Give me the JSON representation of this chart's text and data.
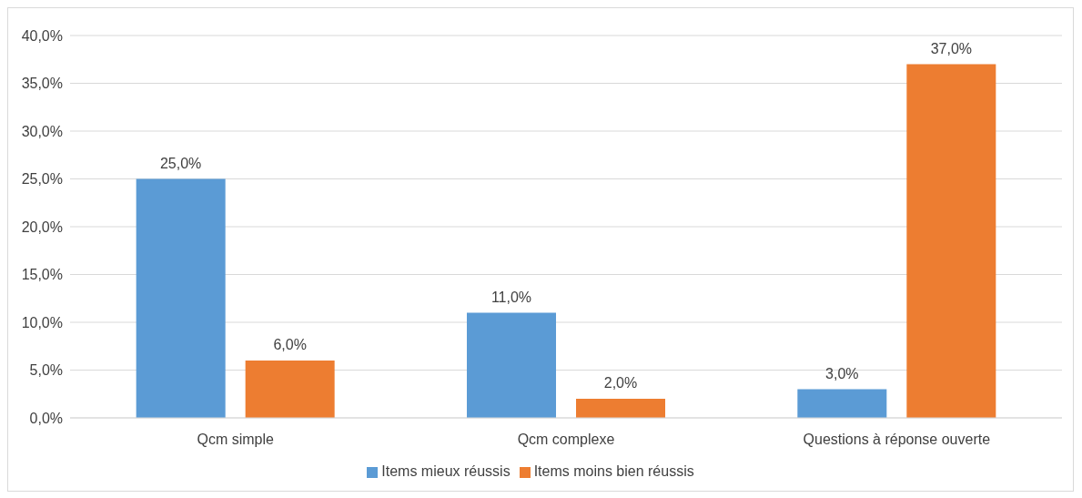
{
  "chart_data": {
    "type": "bar",
    "categories": [
      "Qcm simple",
      "Qcm complexe",
      "Questions à réponse ouverte"
    ],
    "series": [
      {
        "name": "Items mieux réussis",
        "color": "#5b9bd5",
        "values": [
          25,
          11,
          3
        ],
        "value_labels": [
          "25,0%",
          "11,0%",
          "3,0%"
        ]
      },
      {
        "name": "Items moins bien réussis",
        "color": "#ed7d31",
        "values": [
          6,
          2,
          37
        ],
        "value_labels": [
          "6,0%",
          "2,0%",
          "37,0%"
        ]
      }
    ],
    "ylim": [
      0,
      40
    ],
    "yticks": [
      {
        "value": 0,
        "label": "0,0%"
      },
      {
        "value": 5,
        "label": "5,0%"
      },
      {
        "value": 10,
        "label": "10,0%"
      },
      {
        "value": 15,
        "label": "15,0%"
      },
      {
        "value": 20,
        "label": "20,0%"
      },
      {
        "value": 25,
        "label": "25,0%"
      },
      {
        "value": 30,
        "label": "30,0%"
      },
      {
        "value": 35,
        "label": "35,0%"
      },
      {
        "value": 40,
        "label": "40,0%"
      }
    ],
    "grid": "y",
    "legend": "bottom"
  }
}
